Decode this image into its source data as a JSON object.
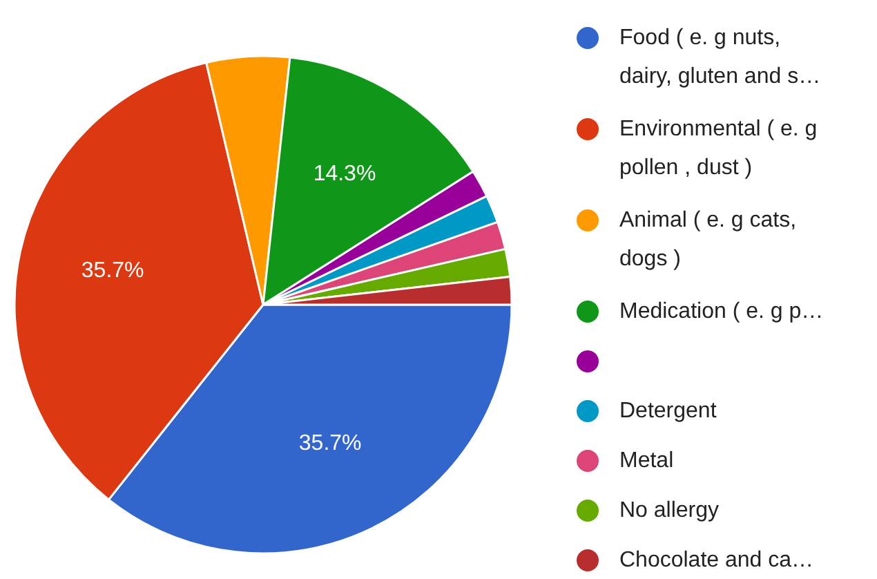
{
  "chart_data": {
    "type": "pie",
    "categories": [
      "Food ( e. g nuts, dairy, gluten and s…",
      "Environmental ( e. g pollen , dust )",
      "Animal ( e. g cats, dogs )",
      "Medication ( e. g p…",
      null,
      "Detergent",
      "Metal",
      "No allergy",
      "Chocolate and ca…"
    ],
    "values": [
      35.7,
      35.7,
      5.4,
      14.3,
      1.8,
      1.8,
      1.8,
      1.8,
      1.8
    ],
    "colors": [
      "#3366cc",
      "#dc3912",
      "#ff9900",
      "#109618",
      "#990099",
      "#0099c6",
      "#dd4477",
      "#66aa00",
      "#b82e2e"
    ],
    "value_labels": [
      "35.7%",
      "35.7%",
      null,
      "14.3%",
      null,
      null,
      null,
      null,
      null
    ],
    "legend": "right"
  }
}
